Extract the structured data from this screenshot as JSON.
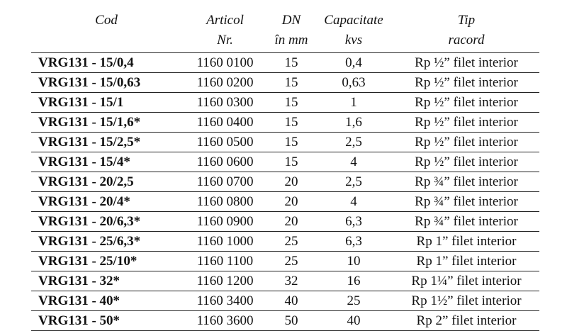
{
  "header": {
    "cod": "Cod",
    "articol": "Articol",
    "nr": "Nr.",
    "dn": "DN",
    "dn_unit": "în mm",
    "capacitate": "Capacitate",
    "kvs": "kvs",
    "tip": "Tip",
    "racord": "racord"
  },
  "rows": [
    {
      "cod": "VRG131 - 15/0,4",
      "articol": "1160 0100",
      "dn": "15",
      "kvs": "0,4",
      "racord": "Rp ½” filet interior"
    },
    {
      "cod": "VRG131 - 15/0,63",
      "articol": "1160 0200",
      "dn": "15",
      "kvs": "0,63",
      "racord": "Rp ½” filet interior"
    },
    {
      "cod": "VRG131 - 15/1",
      "articol": "1160 0300",
      "dn": "15",
      "kvs": "1",
      "racord": "Rp ½” filet interior"
    },
    {
      "cod": "VRG131 - 15/1,6*",
      "articol": "1160 0400",
      "dn": "15",
      "kvs": "1,6",
      "racord": "Rp ½” filet interior"
    },
    {
      "cod": "VRG131 - 15/2,5*",
      "articol": "1160 0500",
      "dn": "15",
      "kvs": "2,5",
      "racord": "Rp ½” filet interior"
    },
    {
      "cod": "VRG131 - 15/4*",
      "articol": "1160 0600",
      "dn": "15",
      "kvs": "4",
      "racord": "Rp ½” filet interior"
    },
    {
      "cod": "VRG131 - 20/2,5",
      "articol": "1160 0700",
      "dn": "20",
      "kvs": "2,5",
      "racord": "Rp ¾” filet interior"
    },
    {
      "cod": "VRG131 - 20/4*",
      "articol": "1160 0800",
      "dn": "20",
      "kvs": "4",
      "racord": "Rp ¾” filet interior"
    },
    {
      "cod": "VRG131 - 20/6,3*",
      "articol": "1160 0900",
      "dn": "20",
      "kvs": "6,3",
      "racord": "Rp ¾” filet interior"
    },
    {
      "cod": "VRG131 - 25/6,3*",
      "articol": "1160 1000",
      "dn": "25",
      "kvs": "6,3",
      "racord": "Rp 1” filet interior"
    },
    {
      "cod": "VRG131 - 25/10*",
      "articol": "1160 1100",
      "dn": "25",
      "kvs": "10",
      "racord": "Rp 1” filet interior"
    },
    {
      "cod": "VRG131 - 32*",
      "articol": "1160 1200",
      "dn": "32",
      "kvs": "16",
      "racord": "Rp 1¼” filet interior"
    },
    {
      "cod": "VRG131 - 40*",
      "articol": "1160 3400",
      "dn": "40",
      "kvs": "25",
      "racord": "Rp 1½” filet interior"
    },
    {
      "cod": "VRG131 - 50*",
      "articol": "1160 3600",
      "dn": "50",
      "kvs": "40",
      "racord": "Rp 2” filet interior"
    }
  ]
}
